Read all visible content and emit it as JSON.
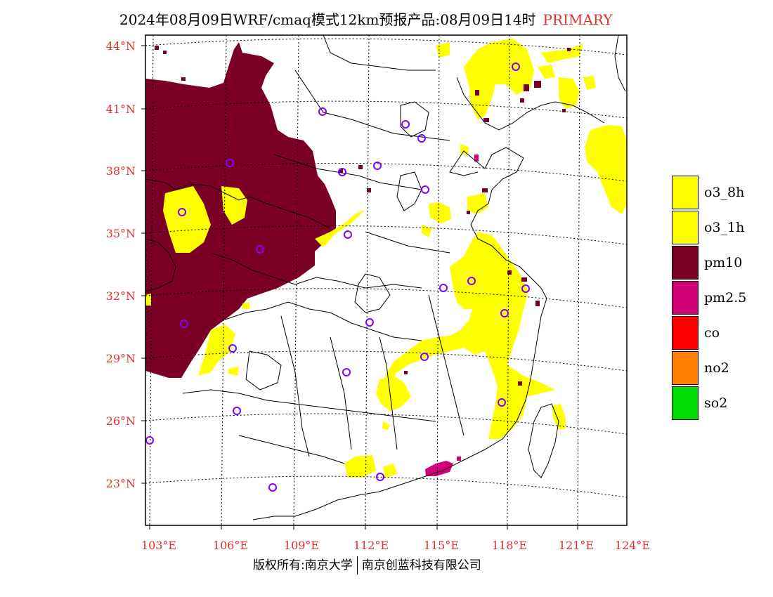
{
  "title": {
    "main": "2024年08月09日WRF/cmaq模式12km预报产品:08月09日14时",
    "tag": "PRIMARY"
  },
  "colors": {
    "primary_tag": "#e03030",
    "axis_labels": "#e03030",
    "o3_8h": "#ffff00",
    "o3_1h": "#ffff00",
    "pm10": "#7a0026",
    "pm25": "#d4007a",
    "co": "#ff0000",
    "no2": "#ff8000",
    "so2": "#00dd00",
    "station_marker": "#8000ff"
  },
  "lat_labels": [
    "44°N",
    "41°N",
    "38°N",
    "35°N",
    "32°N",
    "29°N",
    "26°N",
    "23°N"
  ],
  "lon_labels": [
    "103°E",
    "106°E",
    "109°E",
    "112°E",
    "115°E",
    "118°E",
    "121°E",
    "124°E"
  ],
  "legend": [
    {
      "label": "o3_8h",
      "color": "#ffff00"
    },
    {
      "label": "o3_1h",
      "color": "#ffff00"
    },
    {
      "label": "pm10",
      "color": "#7a0026"
    },
    {
      "label": "pm2.5",
      "color": "#d4007a"
    },
    {
      "label": "co",
      "color": "#ff0000"
    },
    {
      "label": "no2",
      "color": "#ff8000"
    },
    {
      "label": "so2",
      "color": "#00dd00"
    }
  ],
  "copyright": {
    "left": "版权所有:南京大学",
    "right": "南京创蓝科技有限公司"
  }
}
